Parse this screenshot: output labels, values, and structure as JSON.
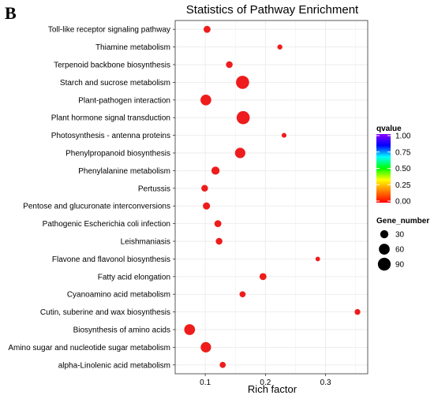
{
  "panel_letter": "B",
  "chart_data": {
    "type": "scatter",
    "title": "Statistics of Pathway Enrichment",
    "xlabel": "Rich factor",
    "ylabel": "",
    "xlim": [
      0.05,
      0.37
    ],
    "xticks": [
      0.1,
      0.2,
      0.3
    ],
    "xtick_labels": [
      "0.1",
      "0.2",
      "0.3"
    ],
    "grid": true,
    "legend_position": "right",
    "categories": [
      "Toll-like receptor signaling pathway",
      "Thiamine metabolism",
      "Terpenoid backbone biosynthesis",
      "Starch and sucrose metabolism",
      "Plant-pathogen interaction",
      "Plant hormone signal transduction",
      "Photosynthesis - antenna proteins",
      "Phenylpropanoid biosynthesis",
      "Phenylalanine metabolism",
      "Pertussis",
      "Pentose and glucuronate interconversions",
      "Pathogenic Escherichia coli infection",
      "Leishmaniasis",
      "Flavone and flavonol biosynthesis",
      "Fatty acid elongation",
      "Cyanoamino acid metabolism",
      "Cutin, suberine and wax biosynthesis",
      "Biosynthesis of amino acids",
      "Amino sugar and nucleotide sugar metabolism",
      "alpha-Linolenic acid metabolism"
    ],
    "rich_factor": [
      0.103,
      0.224,
      0.14,
      0.162,
      0.101,
      0.163,
      0.231,
      0.158,
      0.117,
      0.099,
      0.102,
      0.121,
      0.123,
      0.287,
      0.196,
      0.162,
      0.353,
      0.074,
      0.101,
      0.129
    ],
    "gene_number": [
      20,
      8,
      18,
      95,
      60,
      95,
      7,
      55,
      30,
      18,
      22,
      20,
      18,
      6,
      20,
      14,
      12,
      60,
      55,
      14
    ],
    "qvalue": [
      0.0,
      0.0,
      0.0,
      0.0,
      0.0,
      0.0,
      0.0,
      0.0,
      0.0,
      0.0,
      0.0,
      0.0,
      0.0,
      0.0,
      0.0,
      0.0,
      0.0,
      0.0,
      0.0,
      0.0
    ],
    "color_legend": {
      "title": "qvalue",
      "ticks": [
        1.0,
        0.75,
        0.5,
        0.25,
        0.0
      ],
      "tick_labels": [
        "1.00",
        "0.75",
        "0.50",
        "0.25",
        "0.00"
      ],
      "colors": [
        "#ff0000",
        "#ff7f00",
        "#ffff00",
        "#00ff00",
        "#00ffff",
        "#0000ff",
        "#8b00ff"
      ]
    },
    "size_legend": {
      "title": "Gene_number",
      "values": [
        30,
        60,
        90
      ],
      "labels": [
        "30",
        "60",
        "90"
      ]
    },
    "point_color": "#ee1c1c",
    "panel_background": "#ffffff",
    "grid_color": "#ebebeb"
  }
}
